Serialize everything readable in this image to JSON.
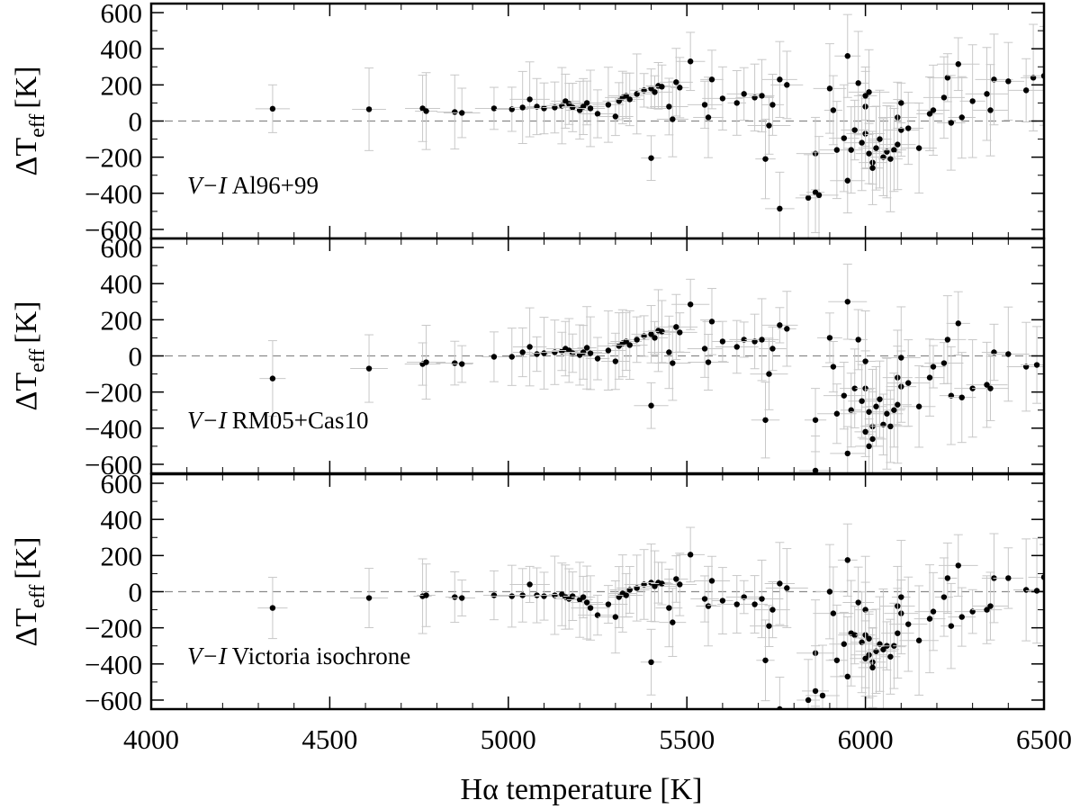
{
  "chart_data": {
    "type": "scatter",
    "x_label": "Hα temperature [K]",
    "x_ticks": [
      "4000",
      "4500",
      "5000",
      "5500",
      "6000",
      "6500"
    ],
    "x_range": [
      4000,
      6500
    ],
    "y_range": [
      -650,
      650
    ],
    "y_ticks": [
      "600",
      "400",
      "200",
      "0",
      "−200",
      "−400",
      "−600"
    ],
    "y_label": {
      "main": "ΔT",
      "sub": "eff",
      "unit": "[K]"
    },
    "zero_line": "dashed",
    "panels": [
      {
        "label_italic": "V−I",
        "label_text": "Al96+99",
        "points": [
          [
            4340,
            68
          ],
          [
            4610,
            65
          ],
          [
            4760,
            70
          ],
          [
            4770,
            55
          ],
          [
            4850,
            50
          ],
          [
            4870,
            45
          ],
          [
            4960,
            70
          ],
          [
            5010,
            65
          ],
          [
            5040,
            75
          ],
          [
            5060,
            120
          ],
          [
            5080,
            80
          ],
          [
            5100,
            70
          ],
          [
            5130,
            75
          ],
          [
            5150,
            85
          ],
          [
            5160,
            110
          ],
          [
            5170,
            95
          ],
          [
            5180,
            75
          ],
          [
            5200,
            60
          ],
          [
            5210,
            80
          ],
          [
            5220,
            100
          ],
          [
            5230,
            70
          ],
          [
            5250,
            40
          ],
          [
            5280,
            90
          ],
          [
            5300,
            25
          ],
          [
            5310,
            110
          ],
          [
            5320,
            130
          ],
          [
            5330,
            140
          ],
          [
            5340,
            120
          ],
          [
            5360,
            150
          ],
          [
            5380,
            170
          ],
          [
            5400,
            180
          ],
          [
            5410,
            160
          ],
          [
            5420,
            195
          ],
          [
            5430,
            190
          ],
          [
            5450,
            80
          ],
          [
            5460,
            10
          ],
          [
            5470,
            215
          ],
          [
            5480,
            185
          ],
          [
            5510,
            330
          ],
          [
            5550,
            90
          ],
          [
            5560,
            20
          ],
          [
            5570,
            230
          ],
          [
            5600,
            125
          ],
          [
            5640,
            100
          ],
          [
            5660,
            150
          ],
          [
            5690,
            130
          ],
          [
            5710,
            140
          ],
          [
            5730,
            -25
          ],
          [
            5740,
            90
          ],
          [
            5760,
            230
          ],
          [
            5780,
            200
          ],
          [
            5720,
            -210
          ],
          [
            5400,
            -205
          ],
          [
            5760,
            -485
          ],
          [
            5840,
            -425
          ],
          [
            5860,
            -180
          ],
          [
            5860,
            -395
          ],
          [
            5870,
            -410
          ],
          [
            5900,
            180
          ],
          [
            5910,
            60
          ],
          [
            5920,
            -160
          ],
          [
            5940,
            -95
          ],
          [
            5950,
            -330
          ],
          [
            5960,
            -160
          ],
          [
            5950,
            360
          ],
          [
            5970,
            -50
          ],
          [
            5980,
            210
          ],
          [
            5990,
            -120
          ],
          [
            6000,
            -70
          ],
          [
            6000,
            80
          ],
          [
            6010,
            -180
          ],
          [
            6020,
            -230
          ],
          [
            6020,
            -260
          ],
          [
            6030,
            -150
          ],
          [
            6040,
            -100
          ],
          [
            6050,
            -200
          ],
          [
            6060,
            -170
          ],
          [
            6070,
            -210
          ],
          [
            6080,
            -160
          ],
          [
            6090,
            20
          ],
          [
            6090,
            -130
          ],
          [
            6100,
            -50
          ],
          [
            6100,
            100
          ],
          [
            6120,
            -40
          ],
          [
            6150,
            -150
          ],
          [
            6180,
            40
          ],
          [
            6190,
            60
          ],
          [
            6220,
            130
          ],
          [
            6230,
            240
          ],
          [
            6240,
            -10
          ],
          [
            6260,
            315
          ],
          [
            6270,
            20
          ],
          [
            6300,
            110
          ],
          [
            6340,
            150
          ],
          [
            6350,
            60
          ],
          [
            6360,
            230
          ],
          [
            6400,
            220
          ],
          [
            6450,
            170
          ],
          [
            6470,
            240
          ],
          [
            6500,
            250
          ],
          [
            6000,
            140
          ],
          [
            6010,
            160
          ]
        ]
      },
      {
        "label_italic": "V−I",
        "label_text": "RM05+Cas10",
        "points": [
          [
            4340,
            -125
          ],
          [
            4610,
            -70
          ],
          [
            4760,
            -45
          ],
          [
            4770,
            -35
          ],
          [
            4850,
            -40
          ],
          [
            4870,
            -45
          ],
          [
            4960,
            -5
          ],
          [
            5010,
            -5
          ],
          [
            5040,
            20
          ],
          [
            5060,
            50
          ],
          [
            5080,
            10
          ],
          [
            5100,
            15
          ],
          [
            5130,
            20
          ],
          [
            5150,
            25
          ],
          [
            5160,
            40
          ],
          [
            5170,
            30
          ],
          [
            5180,
            15
          ],
          [
            5200,
            5
          ],
          [
            5210,
            20
          ],
          [
            5220,
            45
          ],
          [
            5230,
            15
          ],
          [
            5250,
            -15
          ],
          [
            5280,
            30
          ],
          [
            5300,
            -30
          ],
          [
            5310,
            55
          ],
          [
            5320,
            70
          ],
          [
            5330,
            80
          ],
          [
            5340,
            60
          ],
          [
            5360,
            90
          ],
          [
            5380,
            110
          ],
          [
            5400,
            120
          ],
          [
            5410,
            100
          ],
          [
            5420,
            140
          ],
          [
            5430,
            135
          ],
          [
            5450,
            20
          ],
          [
            5460,
            -40
          ],
          [
            5470,
            160
          ],
          [
            5480,
            130
          ],
          [
            5510,
            285
          ],
          [
            5550,
            40
          ],
          [
            5560,
            -35
          ],
          [
            5570,
            190
          ],
          [
            5600,
            80
          ],
          [
            5640,
            50
          ],
          [
            5660,
            90
          ],
          [
            5690,
            80
          ],
          [
            5710,
            90
          ],
          [
            5730,
            -100
          ],
          [
            5740,
            40
          ],
          [
            5760,
            170
          ],
          [
            5780,
            150
          ],
          [
            5720,
            -355
          ],
          [
            5400,
            -275
          ],
          [
            5860,
            -355
          ],
          [
            5860,
            -635
          ],
          [
            5900,
            100
          ],
          [
            5910,
            -60
          ],
          [
            5920,
            -320
          ],
          [
            5940,
            -220
          ],
          [
            5950,
            -540
          ],
          [
            5960,
            -300
          ],
          [
            5950,
            300
          ],
          [
            5970,
            -180
          ],
          [
            5980,
            90
          ],
          [
            5990,
            -250
          ],
          [
            6000,
            -180
          ],
          [
            6000,
            -30
          ],
          [
            6010,
            -310
          ],
          [
            6020,
            -390
          ],
          [
            6020,
            -460
          ],
          [
            6030,
            -280
          ],
          [
            6040,
            -240
          ],
          [
            6050,
            -380
          ],
          [
            6060,
            -320
          ],
          [
            6070,
            -390
          ],
          [
            6080,
            -300
          ],
          [
            6090,
            -120
          ],
          [
            6090,
            -270
          ],
          [
            6100,
            -170
          ],
          [
            6100,
            -10
          ],
          [
            6120,
            -150
          ],
          [
            6150,
            -280
          ],
          [
            6180,
            -120
          ],
          [
            6190,
            -60
          ],
          [
            6220,
            -40
          ],
          [
            6230,
            90
          ],
          [
            6240,
            -220
          ],
          [
            6260,
            180
          ],
          [
            6270,
            -230
          ],
          [
            6300,
            -180
          ],
          [
            6340,
            -160
          ],
          [
            6350,
            -180
          ],
          [
            6360,
            20
          ],
          [
            6400,
            10
          ],
          [
            6450,
            -60
          ],
          [
            6480,
            -50
          ],
          [
            6000,
            -420
          ],
          [
            6010,
            -500
          ]
        ]
      },
      {
        "label_italic": "V−I",
        "label_text": "Victoria isochrone",
        "points": [
          [
            4340,
            -90
          ],
          [
            4610,
            -35
          ],
          [
            4760,
            -25
          ],
          [
            4770,
            -20
          ],
          [
            4850,
            -30
          ],
          [
            4870,
            -35
          ],
          [
            4960,
            -20
          ],
          [
            5010,
            -25
          ],
          [
            5040,
            -20
          ],
          [
            5060,
            40
          ],
          [
            5080,
            -20
          ],
          [
            5100,
            -25
          ],
          [
            5130,
            -20
          ],
          [
            5150,
            -15
          ],
          [
            5160,
            -30
          ],
          [
            5170,
            -40
          ],
          [
            5180,
            -25
          ],
          [
            5200,
            -45
          ],
          [
            5210,
            -30
          ],
          [
            5220,
            -60
          ],
          [
            5230,
            -90
          ],
          [
            5250,
            -130
          ],
          [
            5280,
            -70
          ],
          [
            5300,
            -140
          ],
          [
            5310,
            -30
          ],
          [
            5320,
            -10
          ],
          [
            5330,
            -20
          ],
          [
            5340,
            10
          ],
          [
            5360,
            20
          ],
          [
            5380,
            40
          ],
          [
            5400,
            50
          ],
          [
            5410,
            30
          ],
          [
            5420,
            50
          ],
          [
            5430,
            45
          ],
          [
            5450,
            -90
          ],
          [
            5460,
            -170
          ],
          [
            5470,
            70
          ],
          [
            5480,
            40
          ],
          [
            5510,
            205
          ],
          [
            5550,
            -40
          ],
          [
            5560,
            -80
          ],
          [
            5570,
            60
          ],
          [
            5600,
            -50
          ],
          [
            5640,
            -70
          ],
          [
            5660,
            -30
          ],
          [
            5690,
            -70
          ],
          [
            5710,
            -40
          ],
          [
            5730,
            -190
          ],
          [
            5740,
            -100
          ],
          [
            5760,
            45
          ],
          [
            5780,
            20
          ],
          [
            5720,
            -380
          ],
          [
            5400,
            -390
          ],
          [
            5860,
            -340
          ],
          [
            5860,
            -550
          ],
          [
            5880,
            -575
          ],
          [
            5840,
            -600
          ],
          [
            5760,
            -650
          ],
          [
            5900,
            0
          ],
          [
            5910,
            -120
          ],
          [
            5920,
            -380
          ],
          [
            5940,
            -290
          ],
          [
            5950,
            -470
          ],
          [
            5960,
            -230
          ],
          [
            5950,
            175
          ],
          [
            5970,
            -240
          ],
          [
            5980,
            -60
          ],
          [
            5990,
            -280
          ],
          [
            6000,
            -240
          ],
          [
            6000,
            -100
          ],
          [
            6010,
            -350
          ],
          [
            6020,
            -390
          ],
          [
            6020,
            -420
          ],
          [
            6030,
            -330
          ],
          [
            6040,
            -290
          ],
          [
            6050,
            -320
          ],
          [
            6060,
            -300
          ],
          [
            6070,
            -360
          ],
          [
            6080,
            -300
          ],
          [
            6090,
            -80
          ],
          [
            6090,
            -230
          ],
          [
            6100,
            -120
          ],
          [
            6100,
            -30
          ],
          [
            6120,
            -180
          ],
          [
            6150,
            -270
          ],
          [
            6180,
            -150
          ],
          [
            6190,
            -110
          ],
          [
            6220,
            -30
          ],
          [
            6230,
            75
          ],
          [
            6240,
            -190
          ],
          [
            6260,
            145
          ],
          [
            6270,
            -140
          ],
          [
            6300,
            -110
          ],
          [
            6340,
            -100
          ],
          [
            6350,
            -80
          ],
          [
            6360,
            75
          ],
          [
            6400,
            75
          ],
          [
            6450,
            10
          ],
          [
            6480,
            5
          ],
          [
            6500,
            80
          ],
          [
            6000,
            -370
          ],
          [
            6010,
            -260
          ]
        ]
      }
    ]
  }
}
